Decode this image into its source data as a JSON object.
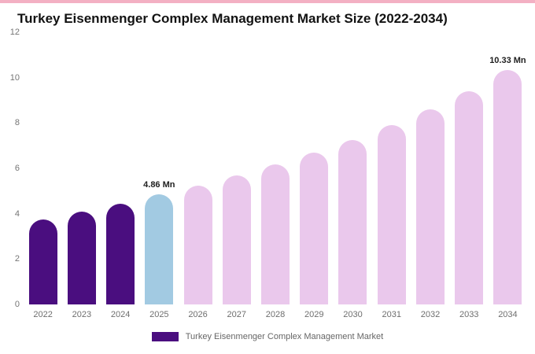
{
  "title": "Turkey Eisenmenger Complex Management Market Size (2022-2034)",
  "colors": {
    "top_strip": "#f3b0c3",
    "historical_bar": "#4a0e7f",
    "current_year_bar": "#a2cae2",
    "forecast_bar": "#eac8ec",
    "axis_text": "#757575"
  },
  "chart_data": {
    "type": "bar",
    "title": "Turkey Eisenmenger Complex Management Market Size (2022-2034)",
    "xlabel": "",
    "ylabel": "",
    "ylim": [
      0,
      12
    ],
    "yticks": [
      0,
      2,
      4,
      6,
      8,
      10,
      12
    ],
    "grid": false,
    "unit": "Mn",
    "categories": [
      "2022",
      "2023",
      "2024",
      "2025",
      "2026",
      "2027",
      "2028",
      "2029",
      "2030",
      "2031",
      "2032",
      "2033",
      "2034"
    ],
    "values": [
      3.76,
      4.08,
      4.44,
      4.86,
      5.24,
      5.68,
      6.16,
      6.68,
      7.26,
      7.9,
      8.6,
      9.4,
      10.33
    ],
    "bar_colors": [
      "#4a0e7f",
      "#4a0e7f",
      "#4a0e7f",
      "#a2cae2",
      "#eac8ec",
      "#eac8ec",
      "#eac8ec",
      "#eac8ec",
      "#eac8ec",
      "#eac8ec",
      "#eac8ec",
      "#eac8ec",
      "#eac8ec"
    ],
    "annotations": [
      {
        "index": 3,
        "text": "4.86 Mn"
      },
      {
        "index": 12,
        "text": "10.33 Mn"
      }
    ],
    "legend": {
      "label": "Turkey Eisenmenger Complex Management Market",
      "color": "#4a0e7f",
      "position": "bottom-center"
    }
  }
}
